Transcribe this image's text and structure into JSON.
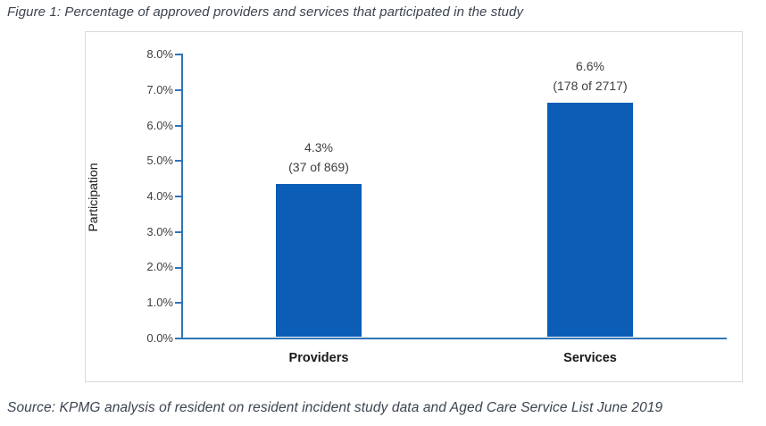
{
  "figure": {
    "title": "Figure 1: Percentage of approved providers and services that participated in the study",
    "source": "Source: KPMG analysis of resident on resident incident study data and Aged Care Service List June 2019"
  },
  "chart_data": {
    "type": "bar",
    "categories": [
      "Providers",
      "Services"
    ],
    "values": [
      4.3,
      6.6
    ],
    "value_labels": [
      {
        "pct": "4.3%",
        "count": "(37 of 869)"
      },
      {
        "pct": "6.6%",
        "count": "(178 of 2717)"
      }
    ],
    "title": "",
    "xlabel": "",
    "ylabel": "Participation",
    "ylim": [
      0,
      8
    ],
    "yticks": [
      "8.0%",
      "7.0%",
      "6.0%",
      "5.0%",
      "4.0%",
      "3.0%",
      "2.0%",
      "1.0%",
      "0.0%"
    ],
    "grid": false,
    "legend_position": "none",
    "bar_color": "#0b5db5",
    "axis_color": "#2e75b6"
  }
}
